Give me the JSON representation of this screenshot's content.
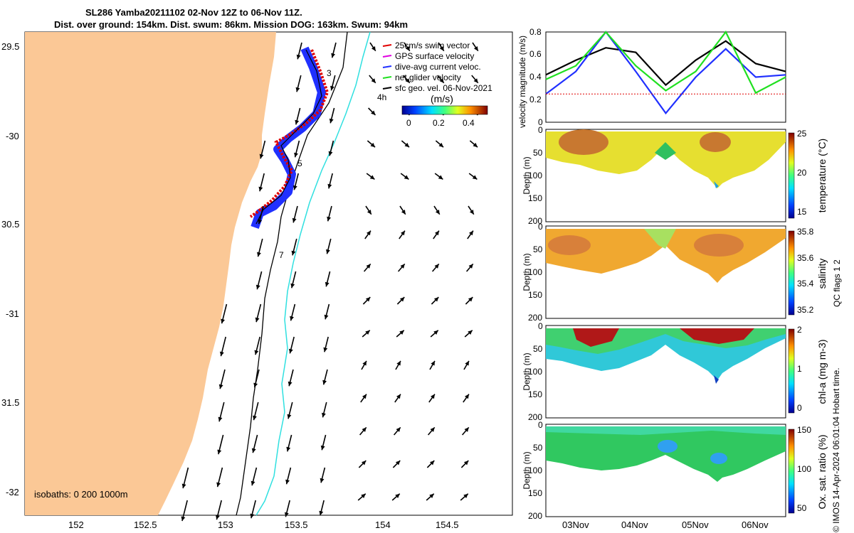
{
  "title_line1": "SL286 Yamba20211102 02-Nov 12Z to 06-Nov 11Z.",
  "title_line2": "Dist. over ground: 154km. Dist. swum: 86km. Mission DOG: 163km. Swum: 94km",
  "map": {
    "lat_ticks": [
      "29.5",
      "-30",
      "30.5",
      "-31",
      "31.5",
      "-32"
    ],
    "lon_ticks": [
      "152",
      "152.5",
      "153",
      "153.5",
      "154",
      "154.5"
    ],
    "legend": [
      "25cm/s swim vector",
      "GPS surface velocity",
      "dive-avg current veloc.",
      "net glider velocity",
      "sfc geo. vel. 06-Nov-2021"
    ],
    "legend_colors": [
      "#e00000",
      "#e000e0",
      "#2030ff",
      "#20e020",
      "#000000"
    ],
    "colorbar_label": "(m/s)",
    "colorbar_ticks": [
      "0",
      "0.2",
      "0.4"
    ],
    "labels": [
      "3",
      "4h",
      "5",
      "7"
    ],
    "isobaths": "isobaths: 0   200  1000m",
    "land_color": "#fbc896",
    "isobath_color": "#30e0e0"
  },
  "velocity_panel": {
    "ylabel": "velocity magnitude (m/s)",
    "yticks": [
      "0",
      "0.2",
      "0.4",
      "0.6",
      "0.8"
    ]
  },
  "section_panels": [
    {
      "name": "temperature",
      "cbar_label": "temperature (°C)",
      "cbar_ticks": [
        "25",
        "20",
        "15"
      ]
    },
    {
      "name": "salinity",
      "cbar_label": "salinity",
      "cbar_ticks": [
        "35.8",
        "35.6",
        "35.4",
        "35.2"
      ]
    },
    {
      "name": "chlorophyll",
      "cbar_label": "chl-a (mg m-3)",
      "cbar_ticks": [
        "2",
        "1",
        "0"
      ]
    },
    {
      "name": "oxygen",
      "cbar_label": "Ox. sat. ratio (%)",
      "cbar_ticks": [
        "150",
        "100",
        "50"
      ]
    }
  ],
  "depth_label": "Depth (m)",
  "depth_ticks": [
    "0",
    "50",
    "100",
    "150",
    "200"
  ],
  "time_ticks": [
    "03Nov",
    "04Nov",
    "05Nov",
    "06Nov"
  ],
  "side_label_qc": "QC flags 1  2",
  "side_label_imos": "© IMOS 14-Apr-2024 06:01:04 Hobart time.",
  "chart_data": {
    "type": "line",
    "title": "velocity magnitude",
    "ylabel": "velocity magnitude (m/s)",
    "ylim": [
      0,
      0.8
    ],
    "x": [
      "02Nov12Z",
      "03Nov00Z",
      "03Nov12Z",
      "04Nov00Z",
      "04Nov12Z",
      "05Nov00Z",
      "05Nov12Z",
      "06Nov00Z",
      "06Nov11Z"
    ],
    "series": [
      {
        "name": "net glider velocity (black)",
        "color": "#000000",
        "values": [
          0.42,
          0.55,
          0.66,
          0.62,
          0.33,
          0.55,
          0.72,
          0.52,
          0.45
        ]
      },
      {
        "name": "dive-avg current veloc. (blue)",
        "color": "#2030ff",
        "values": [
          0.25,
          0.45,
          0.8,
          0.45,
          0.08,
          0.4,
          0.65,
          0.4,
          0.42
        ]
      },
      {
        "name": "GPS surface velocity (green)",
        "color": "#20e020",
        "values": [
          0.38,
          0.5,
          0.8,
          0.5,
          0.28,
          0.45,
          0.8,
          0.26,
          0.4
        ]
      },
      {
        "name": "swim speed (red dotted)",
        "color": "#e00000",
        "values": [
          0.25,
          0.25,
          0.25,
          0.25,
          0.25,
          0.25,
          0.25,
          0.25,
          0.25
        ]
      }
    ]
  }
}
